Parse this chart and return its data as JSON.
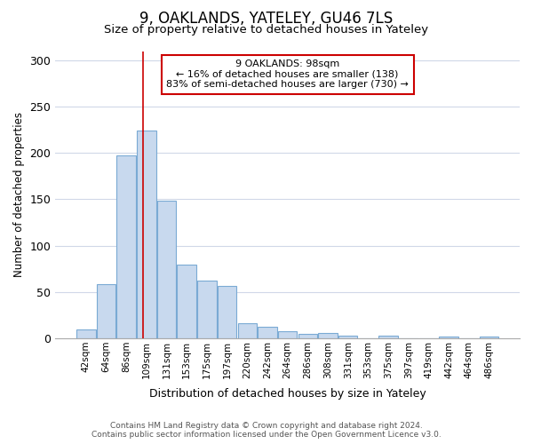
{
  "title1": "9, OAKLANDS, YATELEY, GU46 7LS",
  "title2": "Size of property relative to detached houses in Yateley",
  "xlabel": "Distribution of detached houses by size in Yateley",
  "ylabel": "Number of detached properties",
  "bar_labels": [
    "42sqm",
    "64sqm",
    "86sqm",
    "109sqm",
    "131sqm",
    "153sqm",
    "175sqm",
    "197sqm",
    "220sqm",
    "242sqm",
    "264sqm",
    "286sqm",
    "308sqm",
    "331sqm",
    "353sqm",
    "375sqm",
    "397sqm",
    "419sqm",
    "442sqm",
    "464sqm",
    "486sqm"
  ],
  "bar_values": [
    10,
    58,
    197,
    224,
    149,
    80,
    62,
    57,
    16,
    12,
    8,
    5,
    6,
    3,
    0,
    3,
    0,
    0,
    2,
    0,
    2
  ],
  "bar_color": "#c8d9ee",
  "bar_edge_color": "#7aaad4",
  "vline_x": 2.82,
  "vline_color": "#cc0000",
  "annotation_text": "9 OAKLANDS: 98sqm\n← 16% of detached houses are smaller (138)\n83% of semi-detached houses are larger (730) →",
  "annotation_box_color": "#ffffff",
  "annotation_box_edge": "#cc0000",
  "ylim": [
    0,
    310
  ],
  "yticks": [
    0,
    50,
    100,
    150,
    200,
    250,
    300
  ],
  "footer1": "Contains HM Land Registry data © Crown copyright and database right 2024.",
  "footer2": "Contains public sector information licensed under the Open Government Licence v3.0.",
  "bg_color": "#ffffff",
  "plot_bg_color": "#ffffff"
}
